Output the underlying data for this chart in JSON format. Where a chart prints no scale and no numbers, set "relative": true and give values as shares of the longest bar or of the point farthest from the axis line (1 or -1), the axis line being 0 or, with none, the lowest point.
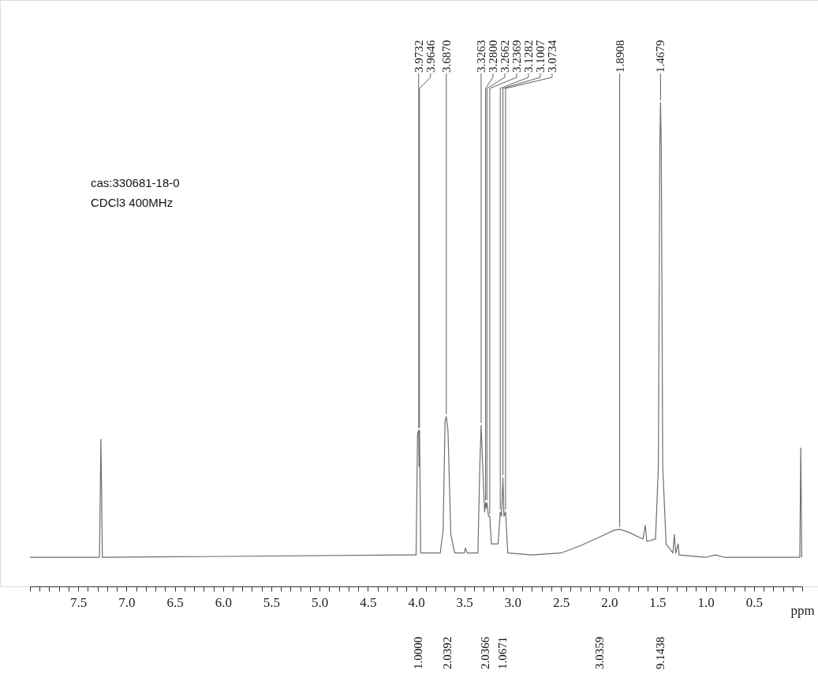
{
  "chart_data": {
    "type": "line",
    "relative": true,
    "xlabel": "ppm",
    "x": [
      8.0,
      7.28,
      7.265,
      7.25,
      4.1,
      4.0,
      3.985,
      3.9732,
      3.969,
      3.9646,
      3.952,
      3.75,
      3.72,
      3.7,
      3.687,
      3.67,
      3.64,
      3.6,
      3.5,
      3.49,
      3.47,
      3.36,
      3.34,
      3.3263,
      3.31,
      3.29,
      3.28,
      3.272,
      3.2662,
      3.25,
      3.2369,
      3.22,
      3.15,
      3.1282,
      3.115,
      3.1007,
      3.09,
      3.0734,
      3.05,
      2.8,
      2.5,
      2.3,
      2.1,
      1.95,
      1.8908,
      1.8,
      1.65,
      1.625,
      1.61,
      1.52,
      1.49,
      1.475,
      1.4679,
      1.46,
      1.445,
      1.41,
      1.34,
      1.325,
      1.31,
      1.285,
      1.275,
      1.0,
      0.9,
      0.8,
      0.025,
      0.015,
      0.005
    ],
    "series": [
      {
        "color": "#6e6e6e",
        "values": [
          0.06,
          0.06,
          0.304,
          0.06,
          0.065,
          0.065,
          0.314,
          0.323,
          0.248,
          0.323,
          0.069,
          0.069,
          0.116,
          0.342,
          0.351,
          0.323,
          0.107,
          0.069,
          0.069,
          0.079,
          0.069,
          0.069,
          0.248,
          0.333,
          0.248,
          0.154,
          0.173,
          0.163,
          0.173,
          0.145,
          0.145,
          0.088,
          0.088,
          0.154,
          0.145,
          0.225,
          0.145,
          0.154,
          0.069,
          0.065,
          0.069,
          0.084,
          0.102,
          0.116,
          0.118,
          0.112,
          0.098,
          0.126,
          0.093,
          0.098,
          0.248,
          0.906,
          1.0,
          0.906,
          0.248,
          0.088,
          0.069,
          0.107,
          0.069,
          0.088,
          0.065,
          0.06,
          0.065,
          0.06,
          0.06,
          0.286,
          0.06
        ]
      }
    ],
    "xlim": [
      8.0,
      0.0
    ],
    "xticks": [
      {
        "value": 8.0,
        "label": null
      },
      {
        "value": 7.9,
        "label": null
      },
      {
        "value": 7.8,
        "label": null
      },
      {
        "value": 7.7,
        "label": null
      },
      {
        "value": 7.6,
        "label": null
      },
      7.5,
      {
        "value": 7.4,
        "label": null
      },
      {
        "value": 7.3,
        "label": null
      },
      {
        "value": 7.2,
        "label": null
      },
      {
        "value": 7.1,
        "label": null
      },
      {
        "value": 7.0,
        "label": "7.0"
      },
      {
        "value": 6.9,
        "label": null
      },
      {
        "value": 6.8,
        "label": null
      },
      {
        "value": 6.7,
        "label": null
      },
      {
        "value": 6.6,
        "label": null
      },
      6.5,
      {
        "value": 6.4,
        "label": null
      },
      {
        "value": 6.3,
        "label": null
      },
      {
        "value": 6.2,
        "label": null
      },
      {
        "value": 6.1,
        "label": null
      },
      {
        "value": 6.0,
        "label": "6.0"
      },
      {
        "value": 5.9,
        "label": null
      },
      {
        "value": 5.8,
        "label": null
      },
      {
        "value": 5.7,
        "label": null
      },
      {
        "value": 5.6,
        "label": null
      },
      5.5,
      {
        "value": 5.4,
        "label": null
      },
      {
        "value": 5.3,
        "label": null
      },
      {
        "value": 5.2,
        "label": null
      },
      {
        "value": 5.1,
        "label": null
      },
      {
        "value": 5.0,
        "label": "5.0"
      },
      {
        "value": 4.9,
        "label": null
      },
      {
        "value": 4.8,
        "label": null
      },
      {
        "value": 4.7,
        "label": null
      },
      {
        "value": 4.6,
        "label": null
      },
      4.5,
      {
        "value": 4.4,
        "label": null
      },
      {
        "value": 4.3,
        "label": null
      },
      {
        "value": 4.2,
        "label": null
      },
      {
        "value": 4.1,
        "label": null
      },
      {
        "value": 4.0,
        "label": "4.0"
      },
      {
        "value": 3.9,
        "label": null
      },
      {
        "value": 3.8,
        "label": null
      },
      {
        "value": 3.7,
        "label": null
      },
      {
        "value": 3.6,
        "label": null
      },
      3.5,
      {
        "value": 3.4,
        "label": null
      },
      {
        "value": 3.3,
        "label": null
      },
      {
        "value": 3.2,
        "label": null
      },
      {
        "value": 3.1,
        "label": null
      },
      {
        "value": 3.0,
        "label": "3.0"
      },
      {
        "value": 2.9,
        "label": null
      },
      {
        "value": 2.8,
        "label": null
      },
      {
        "value": 2.7,
        "label": null
      },
      {
        "value": 2.6,
        "label": null
      },
      2.5,
      {
        "value": 2.4,
        "label": null
      },
      {
        "value": 2.3,
        "label": null
      },
      {
        "value": 2.2,
        "label": null
      },
      {
        "value": 2.1,
        "label": null
      },
      {
        "value": 2.0,
        "label": "2.0"
      },
      {
        "value": 1.9,
        "label": null
      },
      {
        "value": 1.8,
        "label": null
      },
      {
        "value": 1.7,
        "label": null
      },
      {
        "value": 1.6,
        "label": null
      },
      1.5,
      {
        "value": 1.4,
        "label": null
      },
      {
        "value": 1.3,
        "label": null
      },
      {
        "value": 1.2,
        "label": null
      },
      {
        "value": 1.1,
        "label": null
      },
      {
        "value": 1.0,
        "label": "1.0"
      },
      {
        "value": 0.9,
        "label": null
      },
      {
        "value": 0.8,
        "label": null
      },
      {
        "value": 0.7,
        "label": null
      },
      {
        "value": 0.6,
        "label": null
      },
      0.5,
      {
        "value": 0.4,
        "label": null
      },
      {
        "value": 0.3,
        "label": null
      },
      {
        "value": 0.2,
        "label": null
      },
      {
        "value": 0.1,
        "label": null
      },
      {
        "value": 0.0,
        "label": null
      }
    ],
    "grid": false,
    "marker": "none",
    "line_style": "solid",
    "annotations": [
      "cas:330681-18-0",
      "CDCl3 400MHz",
      "1.0000",
      "2.0392",
      "2.0366",
      "1.0671",
      "3.0359",
      "9.1438",
      {
        "text": "3.9732",
        "x": 3.9732,
        "y": 0.323
      },
      {
        "text": "3.9646",
        "x": 3.9646,
        "y": 0.323
      },
      {
        "text": "3.6870",
        "x": 3.687,
        "y": 0.351
      },
      {
        "text": "3.3263",
        "x": 3.3263,
        "y": 0.333
      },
      {
        "text": "3.2800",
        "x": 3.28,
        "y": 0.173
      },
      {
        "text": "3.2662",
        "x": 3.2662,
        "y": 0.173
      },
      {
        "text": "3.2369",
        "x": 3.2369,
        "y": 0.145
      },
      {
        "text": "3.1282",
        "x": 3.1282,
        "y": 0.154
      },
      {
        "text": "3.1007",
        "x": 3.1007,
        "y": 0.225
      },
      {
        "text": "3.0734",
        "x": 3.0734,
        "y": 0.154
      },
      {
        "text": "1.8908",
        "x": 1.8908,
        "y": 0.118
      },
      {
        "text": "1.4679",
        "x": 1.4679,
        "y": 1.0
      }
    ]
  }
}
